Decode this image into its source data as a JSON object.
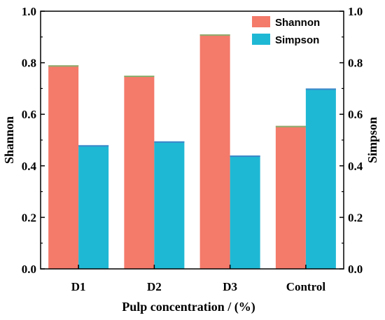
{
  "chart_data": {
    "type": "bar",
    "categories": [
      "D1",
      "D2",
      "D3",
      "Control"
    ],
    "series": [
      {
        "name": "Shannon",
        "values": [
          0.79,
          0.75,
          0.91,
          0.555
        ],
        "color": "#F47A6A",
        "edge": "#8BAE6E",
        "axis": "left"
      },
      {
        "name": "Simpson",
        "values": [
          0.48,
          0.495,
          0.44,
          0.7
        ],
        "color": "#1FB8D4",
        "edge": "#3F86C9",
        "axis": "right"
      }
    ],
    "xlabel": "Pulp concentration / (%)",
    "ylabel": "Shannon",
    "ylabel_right": "Simpson",
    "ylim": [
      0,
      1.0
    ],
    "y_ticks": [
      "0.0",
      "0.2",
      "0.4",
      "0.6",
      "0.8",
      "1.0"
    ],
    "legend_position": "top-right",
    "grid": false
  }
}
